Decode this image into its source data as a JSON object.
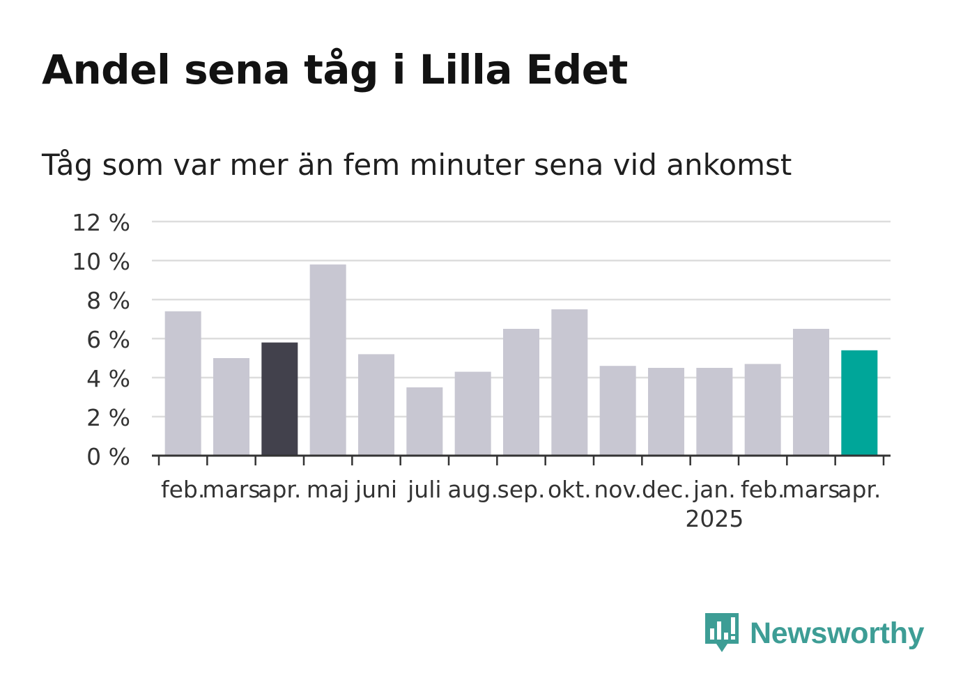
{
  "title": "Andel sena tåg i Lilla Edet",
  "subtitle": "Tåg som var mer än fem minuter sena vid ankomst",
  "brand": {
    "name": "Newsworthy",
    "icon": "newsworthy-bar-chart-icon",
    "color": "#3d9d95"
  },
  "colors": {
    "default": "#c8c7d2",
    "highlight_prev_year": "#42414c",
    "highlight_current": "#00a699",
    "grid": "#dddddd",
    "axis": "#333333"
  },
  "chart_data": {
    "type": "bar",
    "categories": [
      "feb.",
      "mars",
      "apr.",
      "maj",
      "juni",
      "juli",
      "aug.",
      "sep.",
      "okt.",
      "nov.",
      "dec.",
      "jan.",
      "feb.",
      "mars",
      "apr."
    ],
    "year_label": {
      "text": "2025",
      "under_category_index": 11
    },
    "values": [
      7.4,
      5.0,
      5.8,
      9.8,
      5.2,
      3.5,
      4.3,
      6.5,
      7.5,
      4.6,
      4.5,
      4.5,
      4.7,
      6.5,
      5.4
    ],
    "highlight": {
      "2": "highlight_prev_year",
      "14": "highlight_current"
    },
    "ylim": [
      0,
      12
    ],
    "yticks": [
      0,
      2,
      4,
      6,
      8,
      10,
      12
    ],
    "ytick_labels": [
      "0 %",
      "2 %",
      "4 %",
      "6 %",
      "8 %",
      "10 %",
      "12 %"
    ],
    "grid": true,
    "xlabel": "",
    "ylabel": ""
  }
}
